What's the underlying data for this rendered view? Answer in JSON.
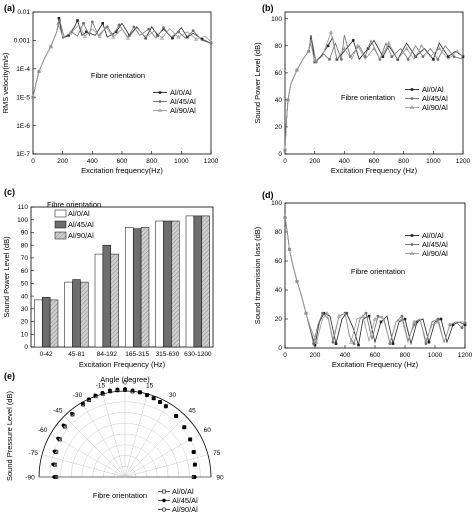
{
  "panels": [
    {
      "id": "a",
      "label": "(a)",
      "xlabel": "Excitation frequency(Hz)",
      "ylabel": "RMS velocity(m/s)",
      "annotation": "Fibre orientation",
      "xticks": [
        "0",
        "200",
        "400",
        "600",
        "800",
        "1000",
        "1200"
      ],
      "yticks": [
        "1E-7",
        "1E-6",
        "1E-5",
        "1E-4",
        "0.001",
        "0.01"
      ]
    },
    {
      "id": "b",
      "label": "(b)",
      "xlabel": "Excitation Frequency (Hz)",
      "ylabel": "Sound Power Level (dB)",
      "annotation": "Fibre orientation",
      "xticks": [
        "0",
        "200",
        "400",
        "600",
        "800",
        "1000",
        "1200"
      ],
      "yticks": [
        "0",
        "20",
        "40",
        "60",
        "80",
        "100"
      ]
    },
    {
      "id": "c",
      "label": "(c)",
      "xlabel": "Excitation Frequency (Hz)",
      "ylabel": "Sound Power Level (dB)",
      "annotation": "Fibre orientation",
      "xticks": [
        "0-42",
        "45-81",
        "84-192",
        "165-315",
        "315-630",
        "630-1200"
      ],
      "yticks": [
        "0",
        "10",
        "20",
        "30",
        "40",
        "50",
        "60",
        "70",
        "80",
        "90",
        "100",
        "110"
      ]
    },
    {
      "id": "d",
      "label": "(d)",
      "xlabel": "Excitation Frequency (Hz)",
      "ylabel": "Sound transmission loss (dB)",
      "annotation": "Fibre orientation",
      "xticks": [
        "0",
        "200",
        "400",
        "600",
        "800",
        "1000",
        "1200"
      ],
      "yticks": [
        "0",
        "20",
        "40",
        "60",
        "80",
        "100"
      ]
    },
    {
      "id": "e",
      "label": "(e)",
      "title": "Angle (degree)",
      "ylabel": "Sound Pressure Level (dB)",
      "annotation": "Fibre orientation",
      "angle_ticks": [
        "-90",
        "-75",
        "-60",
        "-45",
        "-30",
        "-15",
        "0",
        "15",
        "30",
        "45",
        "60",
        "75",
        "90"
      ]
    }
  ],
  "legend": [
    "Al/0/Al",
    "Al/45/Al",
    "Al/90/Al"
  ],
  "colors": {
    "s0": "#222222",
    "s45": "#707070",
    "s90": "#9a9a9a",
    "bar0": "#ffffff",
    "bar45": "#6e6e6e",
    "bar90": "#cfcfcf"
  },
  "chart_data": [
    {
      "panel": "a",
      "type": "line",
      "yscale": "log",
      "xlim": [
        0,
        1200
      ],
      "ylim": [
        1e-07,
        0.01
      ],
      "series": [
        {
          "name": "Al/0/Al",
          "x": [
            0,
            20,
            40,
            80,
            120,
            160,
            175,
            200,
            240,
            280,
            300,
            330,
            360,
            420,
            470,
            500,
            560,
            600,
            650,
            700,
            760,
            800,
            840,
            880,
            940,
            1000,
            1040,
            1080,
            1140,
            1200
          ],
          "y": [
            1e-05,
            3e-05,
            8e-05,
            0.00025,
            0.0006,
            0.002,
            0.006,
            0.0012,
            0.0015,
            0.003,
            0.005,
            0.0015,
            0.002,
            0.0015,
            0.004,
            0.0013,
            0.002,
            0.004,
            0.0015,
            0.003,
            0.0012,
            0.003,
            0.0015,
            0.0025,
            0.0012,
            0.0028,
            0.0013,
            0.0018,
            0.0011,
            0.0008
          ]
        },
        {
          "name": "Al/45/Al",
          "x": [
            0,
            20,
            40,
            80,
            120,
            160,
            180,
            210,
            260,
            300,
            340,
            380,
            400,
            440,
            500,
            540,
            580,
            640,
            680,
            720,
            780,
            830,
            880,
            930,
            980,
            1030,
            1080,
            1140,
            1200
          ],
          "y": [
            1e-05,
            3e-05,
            8e-05,
            0.00025,
            0.0006,
            0.002,
            0.005,
            0.0013,
            0.002,
            0.0014,
            0.004,
            0.0015,
            0.0045,
            0.0015,
            0.003,
            0.0015,
            0.0035,
            0.0013,
            0.003,
            0.0015,
            0.0025,
            0.0012,
            0.0028,
            0.0013,
            0.002,
            0.0012,
            0.0022,
            0.001,
            0.0008
          ]
        },
        {
          "name": "Al/90/Al",
          "x": [
            0,
            20,
            40,
            80,
            120,
            160,
            170,
            200,
            250,
            310,
            350,
            400,
            450,
            490,
            540,
            600,
            640,
            700,
            760,
            820,
            870,
            920,
            980,
            1040,
            1100,
            1160,
            1200
          ],
          "y": [
            1e-05,
            3e-05,
            8e-05,
            0.00025,
            0.0006,
            0.002,
            0.004,
            0.0013,
            0.0018,
            0.0035,
            0.0014,
            0.0025,
            0.0014,
            0.003,
            0.0013,
            0.0025,
            0.0012,
            0.0028,
            0.0013,
            0.0022,
            0.0012,
            0.0026,
            0.0013,
            0.002,
            0.0011,
            0.0014,
            0.0009
          ]
        }
      ]
    },
    {
      "panel": "b",
      "type": "line",
      "xlim": [
        0,
        1200
      ],
      "ylim": [
        0,
        105
      ],
      "series": [
        {
          "name": "Al/0/Al",
          "x": [
            0,
            10,
            20,
            40,
            80,
            120,
            160,
            175,
            200,
            240,
            290,
            320,
            350,
            400,
            460,
            500,
            560,
            600,
            660,
            700,
            760,
            820,
            880,
            940,
            1000,
            1040,
            1100,
            1150,
            1200
          ],
          "y": [
            3,
            25,
            40,
            52,
            62,
            70,
            76,
            88,
            68,
            72,
            80,
            86,
            70,
            76,
            84,
            70,
            78,
            84,
            72,
            80,
            70,
            82,
            72,
            78,
            70,
            82,
            72,
            76,
            72
          ]
        },
        {
          "name": "Al/45/Al",
          "x": [
            0,
            10,
            20,
            40,
            80,
            120,
            160,
            180,
            210,
            260,
            300,
            340,
            380,
            400,
            440,
            500,
            540,
            580,
            640,
            680,
            720,
            780,
            830,
            880,
            930,
            980,
            1030,
            1080,
            1140,
            1200
          ],
          "y": [
            3,
            25,
            40,
            52,
            62,
            70,
            76,
            85,
            68,
            74,
            70,
            82,
            70,
            88,
            72,
            80,
            72,
            84,
            70,
            82,
            72,
            78,
            70,
            80,
            72,
            78,
            70,
            80,
            72,
            70
          ]
        },
        {
          "name": "Al/90/Al",
          "x": [
            0,
            10,
            20,
            40,
            80,
            120,
            160,
            170,
            200,
            250,
            310,
            350,
            400,
            450,
            490,
            540,
            600,
            640,
            700,
            760,
            820,
            870,
            920,
            980,
            1040,
            1100,
            1160,
            1200
          ],
          "y": [
            3,
            25,
            40,
            52,
            62,
            70,
            76,
            84,
            68,
            72,
            90,
            70,
            78,
            70,
            80,
            70,
            78,
            70,
            82,
            70,
            78,
            70,
            80,
            72,
            78,
            70,
            76,
            72
          ]
        }
      ]
    },
    {
      "panel": "c",
      "type": "bar",
      "ylim": [
        0,
        110
      ],
      "categories": [
        "0-42",
        "45-81",
        "84-192",
        "165-315",
        "315-630",
        "630-1200"
      ],
      "series": [
        {
          "name": "Al/0/Al",
          "values": [
            37,
            51,
            73,
            94,
            99,
            103
          ]
        },
        {
          "name": "Al/45/Al",
          "values": [
            39,
            53,
            80,
            93,
            99,
            103
          ]
        },
        {
          "name": "Al/90/Al",
          "values": [
            37,
            51,
            73,
            94,
            99,
            103
          ]
        }
      ]
    },
    {
      "panel": "d",
      "type": "line",
      "xlim": [
        0,
        1200
      ],
      "ylim": [
        0,
        100
      ],
      "series": [
        {
          "name": "Al/0/Al",
          "x": [
            0,
            15,
            30,
            50,
            80,
            110,
            140,
            170,
            200,
            230,
            260,
            300,
            340,
            380,
            410,
            450,
            490,
            520,
            560,
            600,
            640,
            680,
            720,
            760,
            800,
            840,
            880,
            920,
            960,
            1000,
            1040,
            1080,
            1120,
            1160,
            1200
          ],
          "y": [
            90,
            80,
            68,
            58,
            46,
            36,
            24,
            12,
            2,
            18,
            24,
            22,
            3,
            20,
            24,
            15,
            2,
            20,
            22,
            4,
            18,
            22,
            3,
            18,
            20,
            3,
            18,
            20,
            4,
            18,
            20,
            4,
            16,
            18,
            16
          ]
        },
        {
          "name": "Al/45/Al",
          "x": [
            0,
            15,
            30,
            50,
            80,
            110,
            140,
            170,
            190,
            220,
            250,
            290,
            320,
            360,
            400,
            430,
            460,
            500,
            540,
            580,
            620,
            660,
            700,
            740,
            780,
            820,
            860,
            900,
            940,
            980,
            1020,
            1060,
            1100,
            1140,
            1180,
            1200
          ],
          "y": [
            90,
            80,
            68,
            58,
            46,
            36,
            24,
            12,
            3,
            16,
            24,
            20,
            4,
            22,
            24,
            8,
            3,
            20,
            24,
            6,
            22,
            20,
            3,
            18,
            22,
            5,
            16,
            20,
            3,
            18,
            20,
            4,
            16,
            18,
            14,
            18
          ]
        },
        {
          "name": "Al/90/Al",
          "x": [
            0,
            15,
            30,
            50,
            80,
            110,
            140,
            170,
            210,
            250,
            280,
            320,
            360,
            400,
            440,
            480,
            520,
            560,
            600,
            650,
            700,
            740,
            780,
            820,
            860,
            900,
            940,
            980,
            1020,
            1060,
            1100,
            1140,
            1200
          ],
          "y": [
            90,
            80,
            68,
            58,
            46,
            36,
            24,
            14,
            4,
            20,
            24,
            6,
            22,
            24,
            4,
            20,
            22,
            5,
            20,
            22,
            4,
            18,
            20,
            4,
            18,
            20,
            5,
            16,
            18,
            4,
            16,
            18,
            18
          ]
        }
      ]
    },
    {
      "panel": "e",
      "type": "scatter",
      "polar": true,
      "theta_range": [
        -90,
        90
      ],
      "r_range": [
        0,
        80
      ],
      "angles": [
        -90,
        -80,
        -70,
        -60,
        -50,
        -40,
        -30,
        -25,
        -20,
        -15,
        -10,
        -5,
        0,
        5,
        10,
        15,
        20,
        25,
        30,
        40,
        50,
        60,
        70,
        80,
        90
      ],
      "series": [
        {
          "name": "Al/0/Al",
          "values": [
            64,
            66,
            68,
            70,
            73,
            76,
            78,
            79,
            80,
            80,
            81,
            81,
            81,
            80,
            80,
            79,
            78,
            77,
            76,
            74,
            72,
            70,
            68,
            66,
            64
          ]
        },
        {
          "name": "Al/45/Al",
          "values": [
            66,
            68,
            70,
            72,
            75,
            77,
            79,
            80,
            81,
            81,
            82,
            82,
            82,
            81,
            80,
            79,
            78,
            77,
            76,
            74,
            72,
            70,
            68,
            66,
            65
          ]
        },
        {
          "name": "Al/90/Al",
          "values": [
            65,
            67,
            69,
            71,
            74,
            76,
            78,
            79,
            80,
            81,
            81,
            81,
            81,
            80,
            80,
            79,
            78,
            77,
            76,
            74,
            72,
            70,
            68,
            66,
            64
          ]
        }
      ]
    }
  ]
}
